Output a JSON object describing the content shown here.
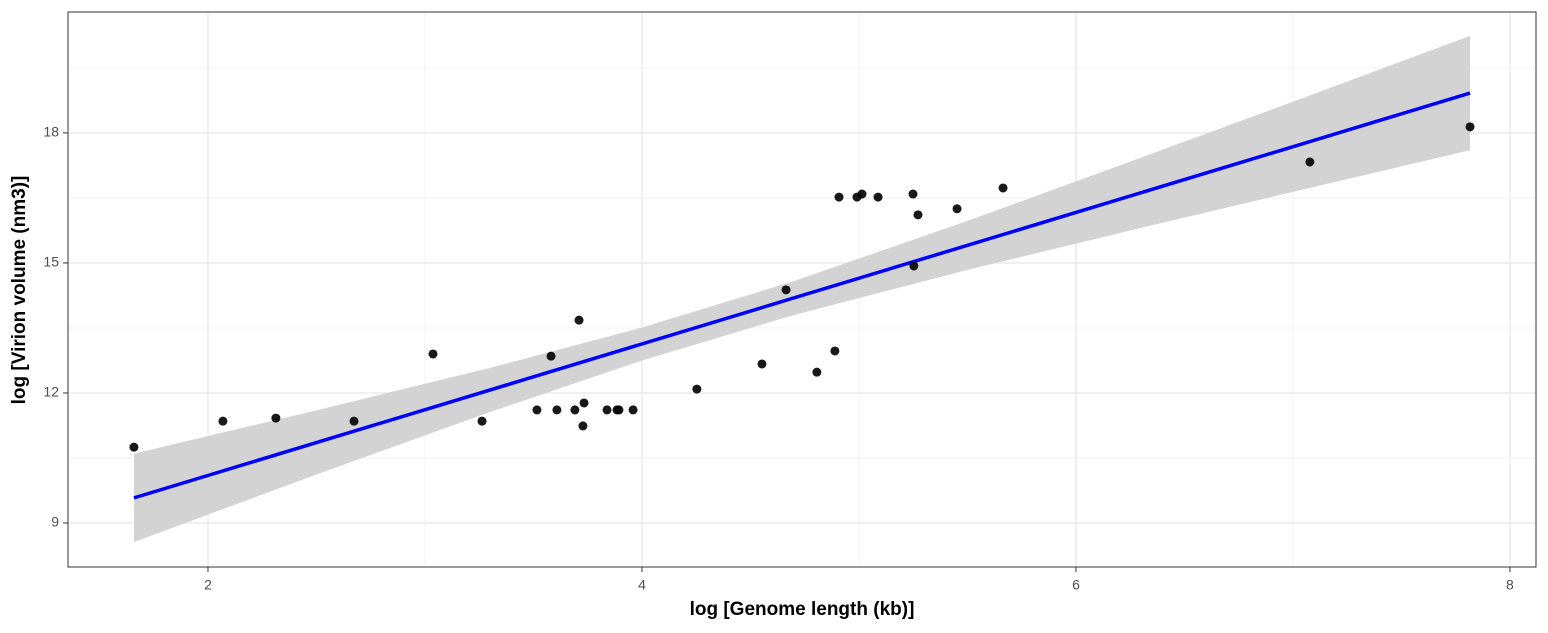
{
  "chart_data": {
    "type": "scatter",
    "xlabel": "log [Genome length (kb)]",
    "ylabel": "log [Virion volume (nm3)]",
    "xlim": [
      1.355,
      8.12
    ],
    "ylim": [
      7.985,
      20.79
    ],
    "xticks": [
      2,
      4,
      6,
      8
    ],
    "yticks": [
      9,
      12,
      15,
      18
    ],
    "grid": true,
    "series": [
      {
        "color": "#000000",
        "x": [
          1.659,
          2.069,
          2.313,
          2.673,
          3.037,
          3.263,
          3.516,
          3.581,
          3.608,
          3.691,
          3.71,
          3.728,
          3.733,
          3.839,
          3.885,
          3.894,
          3.959,
          4.253,
          4.553,
          4.664,
          4.806,
          4.889,
          4.908,
          4.991,
          5.014,
          5.088,
          5.249,
          5.253,
          5.272,
          5.452,
          5.664,
          7.078,
          7.816
        ],
        "values": [
          10.75,
          11.35,
          11.42,
          11.35,
          12.9,
          11.35,
          11.61,
          12.85,
          11.61,
          11.61,
          13.68,
          11.24,
          11.77,
          11.61,
          11.61,
          11.61,
          11.61,
          12.09,
          12.67,
          14.38,
          12.48,
          12.97,
          16.52,
          16.52,
          16.59,
          16.52,
          16.59,
          14.93,
          16.11,
          16.25,
          16.73,
          17.33,
          18.14
        ]
      }
    ],
    "fit": {
      "color": "#0000ff",
      "x": [
        1.659,
        7.816
      ],
      "values": [
        9.58,
        18.92
      ]
    },
    "band": {
      "color": "#d3d3d3",
      "x": [
        1.659,
        2.5,
        3.3,
        4,
        4.7,
        5.5,
        6.3,
        7,
        7.816
      ],
      "upper": [
        10.6,
        11.6,
        12.58,
        13.51,
        14.58,
        15.97,
        17.43,
        18.72,
        20.24
      ],
      "lower": [
        8.56,
        10.12,
        11.56,
        12.75,
        13.8,
        14.84,
        15.81,
        16.64,
        17.6
      ]
    }
  }
}
